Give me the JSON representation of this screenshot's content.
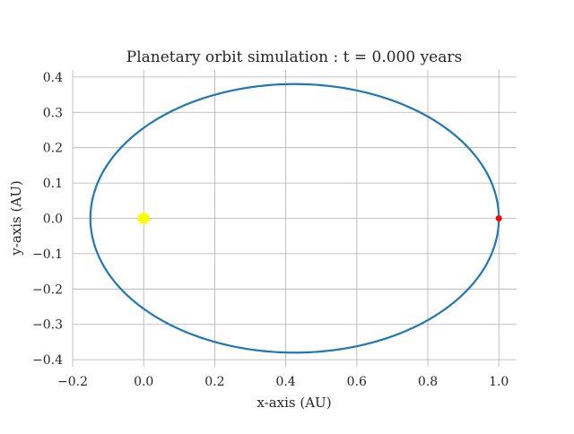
{
  "chart_data": {
    "type": "line",
    "title": "Planetary orbit simulation : t = 0.000 years",
    "xlabel": "x-axis (AU)",
    "ylabel": "y-axis (AU)",
    "xlim": [
      -0.2,
      1.05
    ],
    "ylim": [
      -0.42,
      0.42
    ],
    "x_ticks": [
      -0.2,
      0.0,
      0.2,
      0.4,
      0.6,
      0.8,
      1.0
    ],
    "y_ticks": [
      -0.4,
      -0.3,
      -0.2,
      -0.1,
      0.0,
      0.1,
      0.2,
      0.3,
      0.4
    ],
    "x_tick_labels": [
      "−0.2",
      "0.0",
      "0.2",
      "0.4",
      "0.6",
      "0.8",
      "1.0"
    ],
    "y_tick_labels": [
      "−0.4",
      "−0.3",
      "−0.2",
      "−0.1",
      "0.0",
      "0.1",
      "0.2",
      "0.3",
      "0.4"
    ],
    "grid": true,
    "orbit": {
      "center_x": 0.425,
      "center_y": 0.0,
      "semi_major_axis": 0.575,
      "semi_minor_axis": 0.38,
      "color": "#1f77b4"
    },
    "star": {
      "x": 0.0,
      "y": 0.0,
      "color": "#ffff00"
    },
    "planet": {
      "x": 1.0,
      "y": 0.0,
      "color": "#ff0000"
    }
  }
}
